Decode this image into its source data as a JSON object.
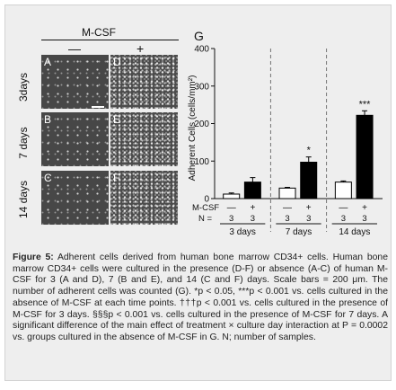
{
  "micrographs": {
    "title": "M-CSF",
    "conditions": [
      "—",
      "+"
    ],
    "row_labels": [
      "3days",
      "7 days",
      "14 days"
    ],
    "panel_letters": [
      "A",
      "B",
      "C",
      "D",
      "E",
      "F"
    ]
  },
  "chart_data": {
    "type": "bar",
    "panel_letter": "G",
    "ylabel": "Adherent Cells (cells/mm²)",
    "ylim": [
      0,
      400
    ],
    "yticks": [
      "0",
      "100",
      "200",
      "300",
      "400"
    ],
    "groups": [
      "3 days",
      "7 days",
      "14 days"
    ],
    "mcsf_label": "M-CSF",
    "n_label": "N =",
    "treatment_symbols": [
      "—",
      "+",
      "—",
      "+",
      "—",
      "+"
    ],
    "n_values": [
      "3",
      "3",
      "3",
      "3",
      "3",
      "3"
    ],
    "values": [
      12,
      44,
      28,
      97,
      44,
      222
    ],
    "errors": [
      3,
      12,
      2,
      14,
      3,
      12
    ],
    "fill": [
      "white",
      "black",
      "white",
      "black",
      "white",
      "black"
    ],
    "significance": [
      "",
      "",
      "",
      "*",
      "",
      "***"
    ]
  },
  "caption": {
    "label": "Figure 5:",
    "text": " Adherent cells derived from human bone marrow CD34+ cells. Human bone marrow CD34+ cells were cultured in the presence (D-F) or absence (A-C) of human M-CSF for 3 (A and D), 7 (B and E), and 14 (C and F) days. Scale bars = 200 μm. The number of adherent cells was counted (G). *p < 0.05, ***p < 0.001 vs. cells cultured in the absence of M-CSF at each time points. †††p < 0.001 vs. cells cultured in the presence of M-CSF for 3 days. §§§p < 0.001 vs. cells cultured in the presence of M-CSF for 7 days. A significant difference of the main effect of treatment × culture day interaction at P = 0.0002 vs. groups cultured in the absence of M-CSF in G. N; number of samples."
  }
}
